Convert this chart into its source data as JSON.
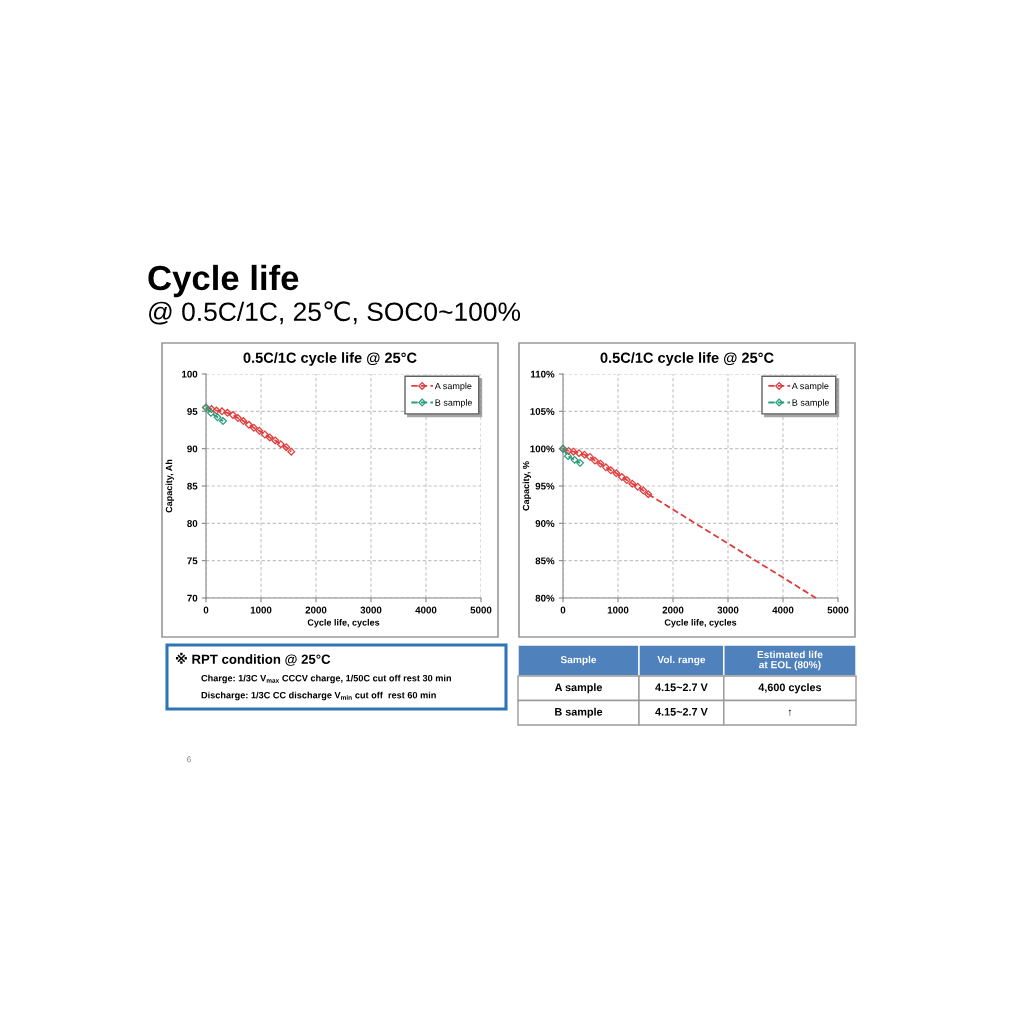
{
  "chart_data": [
    {
      "type": "other",
      "title": "Cycle life",
      "subtitle": "@ 0.5C/1C, 25℃, SOC0~100%",
      "annotations": [
        "6"
      ]
    },
    {
      "type": "line",
      "title": "0.5C/1C cycle life @ 25°C",
      "xlabel": "Cycle life, cycles",
      "ylabel": "Capacity, Ah",
      "xlim": [
        0,
        5000
      ],
      "xticks": [
        0,
        1000,
        2000,
        3000,
        4000,
        5000
      ],
      "ylim": [
        70,
        100
      ],
      "yticks": [
        70,
        75,
        80,
        85,
        90,
        95,
        100
      ],
      "grid": true,
      "legend": "top right",
      "marker": "diamond",
      "line_style": "dashed",
      "series": [
        {
          "name": "A sample",
          "color": "#e03c3c",
          "x": [
            0,
            100,
            190,
            290,
            390,
            490,
            580,
            680,
            780,
            870,
            970,
            1070,
            1160,
            1260,
            1360,
            1460,
            1550
          ],
          "values": [
            95.5,
            95.3,
            95.1,
            95.0,
            94.8,
            94.5,
            94.1,
            93.7,
            93.2,
            92.8,
            92.4,
            91.9,
            91.5,
            91.1,
            90.6,
            90.2,
            89.6
          ]
        },
        {
          "name": "B sample",
          "color": "#2a9d7c",
          "x": [
            0,
            90,
            210,
            310
          ],
          "values": [
            95.5,
            94.8,
            94.2,
            93.7
          ]
        }
      ]
    },
    {
      "type": "line",
      "title": "0.5C/1C cycle life @ 25°C",
      "xlabel": "Cycle life, cycles",
      "ylabel": "Capacity, %",
      "xlim": [
        0,
        5000
      ],
      "xticks": [
        0,
        1000,
        2000,
        3000,
        4000,
        5000
      ],
      "ylim": [
        80,
        110
      ],
      "yticks": [
        {
          "value": 80,
          "label": "80%"
        },
        {
          "value": 85,
          "label": "85%"
        },
        {
          "value": 90,
          "label": "90%"
        },
        {
          "value": 95,
          "label": "95%"
        },
        {
          "value": 100,
          "label": "100%"
        },
        {
          "value": 105,
          "label": "105%"
        },
        {
          "value": 110,
          "label": "110%"
        }
      ],
      "grid": true,
      "legend": "top right",
      "marker": "diamond",
      "line_style": "dashed",
      "series": [
        {
          "name": "A sample",
          "color": "#e03c3c",
          "x": [
            0,
            100,
            190,
            290,
            390,
            490,
            580,
            680,
            780,
            870,
            970,
            1070,
            1160,
            1260,
            1360,
            1460,
            1550
          ],
          "values": [
            100,
            99.7,
            99.6,
            99.4,
            99.2,
            98.9,
            98.4,
            98.0,
            97.5,
            97.1,
            96.7,
            96.2,
            95.8,
            95.3,
            94.9,
            94.4,
            93.9
          ]
        },
        {
          "name": "B sample",
          "color": "#2a9d7c",
          "x": [
            0,
            90,
            210,
            310
          ],
          "values": [
            100,
            99.0,
            98.5,
            98.1
          ]
        },
        {
          "type": "line",
          "marker": "none",
          "color": "#e03c3c",
          "x": [
            1550,
            4600
          ],
          "values": [
            93.9,
            80
          ]
        }
      ]
    },
    {
      "type": "other",
      "title": "※ RPT condition @ 25°C",
      "annotations": [
        "Charge: 1/3C V$_{max}$ CCCV charge, 1/50C cut off rest 30 min",
        "Discharge: 1/3C CC discharge V$_{min}$ cut off  rest 60 min"
      ]
    },
    {
      "type": "other",
      "categories": [
        "Sample",
        "Vol. range",
        "Estimated life\nat EOL (80%)"
      ],
      "annotations": [
        "A sample",
        "4.15~2.7 V",
        "4,600 cycles",
        "B sample",
        "4.15~2.7 V",
        "↑"
      ]
    }
  ]
}
